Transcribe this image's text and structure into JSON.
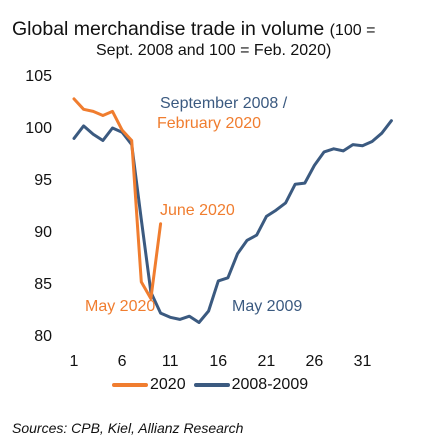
{
  "title": {
    "main": "Global merchandise trade in volume",
    "sub_a": "(100 =",
    "sub_b": "Sept. 2008 and 100 = Feb. 2020)"
  },
  "source": "Sources: CPB, Kiel, Allianz Research",
  "colors": {
    "s2020": "#f07d2f",
    "s2008": "#3b5a80"
  },
  "chart_data": {
    "type": "line",
    "xlim": [
      1,
      35
    ],
    "ylim": [
      80,
      105
    ],
    "x_ticks": [
      1,
      6,
      11,
      16,
      21,
      26,
      31
    ],
    "y_ticks": [
      80,
      85,
      90,
      95,
      100,
      105
    ],
    "series": [
      {
        "name": "2020",
        "x": [
          1,
          2,
          3,
          4,
          5,
          6,
          7,
          8,
          9,
          10
        ],
        "y": [
          102.8,
          101.8,
          101.6,
          101.2,
          101.6,
          99.8,
          98.8,
          85.2,
          83.6,
          90.8
        ]
      },
      {
        "name": "2008-2009",
        "x": [
          1,
          2,
          3,
          4,
          5,
          6,
          7,
          8,
          9,
          10,
          11,
          12,
          13,
          14,
          15,
          16,
          17,
          18,
          19,
          20,
          21,
          22,
          23,
          24,
          25,
          26,
          27,
          28,
          29,
          30,
          31,
          32,
          33,
          34
        ],
        "y": [
          99,
          100.2,
          99.4,
          98.8,
          100,
          99.6,
          98.4,
          91.2,
          84.2,
          82.2,
          81.8,
          81.6,
          81.9,
          81.3,
          82.4,
          85.3,
          85.6,
          87.9,
          89.2,
          89.7,
          91.5,
          92.1,
          92.8,
          94.6,
          94.7,
          96.4,
          97.7,
          98,
          97.8,
          98.4,
          98.3,
          98.7,
          99.5,
          100.7
        ]
      }
    ],
    "annotations": [
      {
        "text": "September 2008 /",
        "color": "s2008"
      },
      {
        "text": "February 2020",
        "color": "s2020"
      },
      {
        "text": "June 2020",
        "color": "s2020"
      },
      {
        "text": "May 2020",
        "color": "s2020"
      },
      {
        "text": "May 2009",
        "color": "s2008"
      }
    ]
  }
}
